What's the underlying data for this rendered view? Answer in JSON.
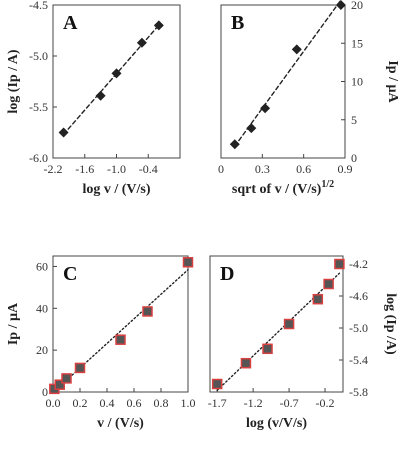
{
  "chart_data": [
    {
      "type": "scatter",
      "panel": "A",
      "xlabel": "log v / (V/s)",
      "ylabel": "log (Ip / A)",
      "xlim": [
        -2.2,
        0.2
      ],
      "ylim": [
        -6.0,
        -4.5
      ],
      "xticks": [
        -2.2,
        -1.6,
        -1.0,
        -0.4
      ],
      "xtick_labels": [
        "-2.2",
        "-1.6",
        "-1.0",
        "-0.4"
      ],
      "yticks": [
        -6.0,
        -5.5,
        -5.0,
        -4.5
      ],
      "ytick_labels": [
        "-6.0",
        "-5.5",
        "-5.0",
        "-4.5"
      ],
      "y_axis_side": "left",
      "marker": "diamond",
      "marker_color": "#222222",
      "fit_line": "dashed",
      "points": [
        {
          "x": -2.0,
          "y": -5.75
        },
        {
          "x": -1.3,
          "y": -5.39
        },
        {
          "x": -1.0,
          "y": -5.17
        },
        {
          "x": -0.52,
          "y": -4.87
        },
        {
          "x": -0.2,
          "y": -4.7
        }
      ]
    },
    {
      "type": "scatter",
      "panel": "B",
      "xlabel": "sqrt of v / (V/s)",
      "xlabel_sup": "1/2",
      "ylabel": "Ip / µA",
      "xlim": [
        0.0,
        0.9
      ],
      "ylim": [
        0,
        20
      ],
      "xticks": [
        0.0,
        0.3,
        0.6,
        0.9
      ],
      "xtick_labels": [
        "0",
        "0.3",
        "0.6",
        "0.9"
      ],
      "yticks": [
        0,
        5,
        10,
        15,
        20
      ],
      "ytick_labels": [
        "0",
        "5",
        "10",
        "15",
        "20"
      ],
      "y_axis_side": "right",
      "marker": "diamond",
      "marker_color": "#222222",
      "fit_line": "dashed",
      "points": [
        {
          "x": 0.1,
          "y": 1.8
        },
        {
          "x": 0.22,
          "y": 3.9
        },
        {
          "x": 0.32,
          "y": 6.5
        },
        {
          "x": 0.55,
          "y": 14.2
        },
        {
          "x": 0.87,
          "y": 20.0
        }
      ]
    },
    {
      "type": "scatter",
      "panel": "C",
      "xlabel": "v / (V/s)",
      "ylabel": "Ip / µA",
      "xlim": [
        0.0,
        1.0
      ],
      "ylim": [
        0,
        65
      ],
      "xticks": [
        0.0,
        0.2,
        0.4,
        0.6,
        0.8,
        1.0
      ],
      "xtick_labels": [
        "0.0",
        "0.2",
        "0.4",
        "0.6",
        "0.8",
        "1.0"
      ],
      "yticks": [
        0,
        20,
        40,
        60
      ],
      "ytick_labels": [
        "0",
        "20",
        "40",
        "60"
      ],
      "y_axis_side": "left",
      "marker": "square",
      "marker_color": "#555555",
      "marker_edge": "#d94040",
      "fit_line": "dotted",
      "points": [
        {
          "x": 0.01,
          "y": 1.5
        },
        {
          "x": 0.05,
          "y": 3.5
        },
        {
          "x": 0.1,
          "y": 6.5
        },
        {
          "x": 0.2,
          "y": 11.5
        },
        {
          "x": 0.5,
          "y": 25.0
        },
        {
          "x": 0.7,
          "y": 38.5
        },
        {
          "x": 1.0,
          "y": 62.0
        }
      ]
    },
    {
      "type": "scatter",
      "panel": "D",
      "xlabel": "log (v/V/s)",
      "ylabel": "log (Ip /A)",
      "xlim": [
        -1.8,
        0.05
      ],
      "ylim": [
        -5.8,
        -4.1
      ],
      "xticks": [
        -1.7,
        -1.2,
        -0.7,
        -0.2
      ],
      "xtick_labels": [
        "-1.7",
        "-1.2",
        "-0.7",
        "-0.2"
      ],
      "yticks": [
        -5.8,
        -5.4,
        -5.0,
        -4.6,
        -4.2
      ],
      "ytick_labels": [
        "-5.8",
        "-5.4",
        "-5.0",
        "-4.6",
        "-4.2"
      ],
      "y_axis_side": "right",
      "marker": "square",
      "marker_color": "#555555",
      "marker_edge": "#d94040",
      "fit_line": "dotted",
      "points": [
        {
          "x": -1.7,
          "y": -5.7
        },
        {
          "x": -1.3,
          "y": -5.44
        },
        {
          "x": -1.0,
          "y": -5.26
        },
        {
          "x": -0.7,
          "y": -4.95
        },
        {
          "x": -0.3,
          "y": -4.64
        },
        {
          "x": -0.15,
          "y": -4.45
        },
        {
          "x": 0.0,
          "y": -4.2
        }
      ]
    }
  ]
}
